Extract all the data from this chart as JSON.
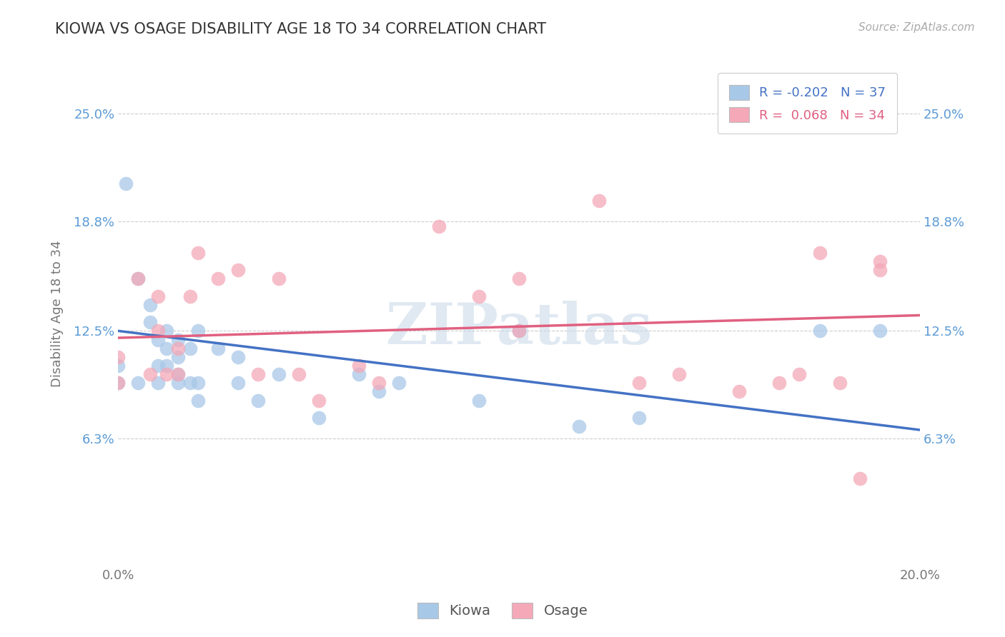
{
  "title": "KIOWA VS OSAGE DISABILITY AGE 18 TO 34 CORRELATION CHART",
  "source": "Source: ZipAtlas.com",
  "ylabel": "Disability Age 18 to 34",
  "xlim": [
    0.0,
    0.2
  ],
  "ylim": [
    -0.01,
    0.28
  ],
  "ytick_labels": [
    "6.3%",
    "12.5%",
    "18.8%",
    "25.0%"
  ],
  "ytick_values": [
    0.063,
    0.125,
    0.188,
    0.25
  ],
  "xtick_values": [
    0.0,
    0.02,
    0.04,
    0.06,
    0.08,
    0.1,
    0.12,
    0.14,
    0.16,
    0.18,
    0.2
  ],
  "xtick_labels": [
    "0.0%",
    "",
    "",
    "",
    "",
    "",
    "",
    "",
    "",
    "",
    "20.0%"
  ],
  "kiowa_R": -0.202,
  "kiowa_N": 37,
  "osage_R": 0.068,
  "osage_N": 34,
  "kiowa_color": "#A8C8E8",
  "osage_color": "#F4A8B8",
  "kiowa_line_color": "#4472C4",
  "osage_line_color": "#E06080",
  "kiowa_x": [
    0.0,
    0.0,
    0.002,
    0.005,
    0.005,
    0.008,
    0.008,
    0.01,
    0.01,
    0.01,
    0.012,
    0.012,
    0.012,
    0.015,
    0.015,
    0.015,
    0.015,
    0.018,
    0.018,
    0.02,
    0.02,
    0.02,
    0.025,
    0.03,
    0.03,
    0.035,
    0.04,
    0.05,
    0.06,
    0.065,
    0.07,
    0.09,
    0.1,
    0.115,
    0.13,
    0.175,
    0.19
  ],
  "kiowa_y": [
    0.095,
    0.105,
    0.21,
    0.095,
    0.155,
    0.13,
    0.14,
    0.095,
    0.105,
    0.12,
    0.105,
    0.115,
    0.125,
    0.095,
    0.1,
    0.11,
    0.12,
    0.095,
    0.115,
    0.085,
    0.095,
    0.125,
    0.115,
    0.095,
    0.11,
    0.085,
    0.1,
    0.075,
    0.1,
    0.09,
    0.095,
    0.085,
    0.125,
    0.07,
    0.075,
    0.125,
    0.125
  ],
  "osage_x": [
    0.0,
    0.0,
    0.005,
    0.008,
    0.01,
    0.01,
    0.012,
    0.015,
    0.015,
    0.018,
    0.02,
    0.025,
    0.03,
    0.035,
    0.04,
    0.045,
    0.05,
    0.06,
    0.065,
    0.08,
    0.09,
    0.1,
    0.1,
    0.12,
    0.13,
    0.14,
    0.155,
    0.165,
    0.17,
    0.175,
    0.18,
    0.185,
    0.19,
    0.19
  ],
  "osage_y": [
    0.095,
    0.11,
    0.155,
    0.1,
    0.125,
    0.145,
    0.1,
    0.1,
    0.115,
    0.145,
    0.17,
    0.155,
    0.16,
    0.1,
    0.155,
    0.1,
    0.085,
    0.105,
    0.095,
    0.185,
    0.145,
    0.125,
    0.155,
    0.2,
    0.095,
    0.1,
    0.09,
    0.095,
    0.1,
    0.17,
    0.095,
    0.04,
    0.16,
    0.165
  ]
}
